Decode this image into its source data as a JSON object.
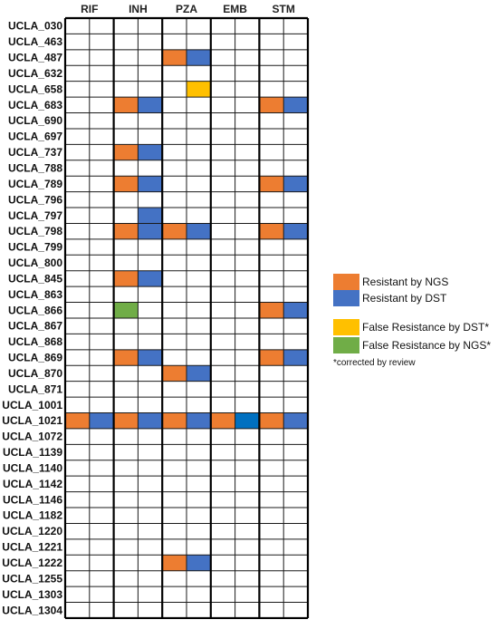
{
  "chart_data": {
    "type": "heatmap",
    "columns": [
      "RIF",
      "INH",
      "PZA",
      "EMB",
      "STM"
    ],
    "subcolumns": [
      "NGS",
      "DST"
    ],
    "rows": [
      "UCLA_030",
      "UCLA_463",
      "UCLA_487",
      "UCLA_632",
      "UCLA_658",
      "UCLA_683",
      "UCLA_690",
      "UCLA_697",
      "UCLA_737",
      "UCLA_788",
      "UCLA_789",
      "UCLA_796",
      "UCLA_797",
      "UCLA_798",
      "UCLA_799",
      "UCLA_800",
      "UCLA_845",
      "UCLA_863",
      "UCLA_866",
      "UCLA_867",
      "UCLA_868",
      "UCLA_869",
      "UCLA_870",
      "UCLA_871",
      "UCLA_1001",
      "UCLA_1021",
      "UCLA_1072",
      "UCLA_1139",
      "UCLA_1140",
      "UCLA_1142",
      "UCLA_1146",
      "UCLA_1182",
      "UCLA_1220",
      "UCLA_1221",
      "UCLA_1222",
      "UCLA_1255",
      "UCLA_1303",
      "UCLA_1304"
    ],
    "cells": [
      {
        "row": "UCLA_487",
        "drug": "PZA",
        "sub": "NGS",
        "status": "resistant_ngs"
      },
      {
        "row": "UCLA_487",
        "drug": "PZA",
        "sub": "DST",
        "status": "resistant_dst"
      },
      {
        "row": "UCLA_658",
        "drug": "PZA",
        "sub": "DST",
        "status": "false_dst"
      },
      {
        "row": "UCLA_683",
        "drug": "INH",
        "sub": "NGS",
        "status": "resistant_ngs"
      },
      {
        "row": "UCLA_683",
        "drug": "INH",
        "sub": "DST",
        "status": "resistant_dst"
      },
      {
        "row": "UCLA_683",
        "drug": "STM",
        "sub": "NGS",
        "status": "resistant_ngs"
      },
      {
        "row": "UCLA_683",
        "drug": "STM",
        "sub": "DST",
        "status": "resistant_dst"
      },
      {
        "row": "UCLA_737",
        "drug": "INH",
        "sub": "NGS",
        "status": "resistant_ngs"
      },
      {
        "row": "UCLA_737",
        "drug": "INH",
        "sub": "DST",
        "status": "resistant_dst"
      },
      {
        "row": "UCLA_789",
        "drug": "INH",
        "sub": "NGS",
        "status": "resistant_ngs"
      },
      {
        "row": "UCLA_789",
        "drug": "INH",
        "sub": "DST",
        "status": "resistant_dst"
      },
      {
        "row": "UCLA_789",
        "drug": "STM",
        "sub": "NGS",
        "status": "resistant_ngs"
      },
      {
        "row": "UCLA_789",
        "drug": "STM",
        "sub": "DST",
        "status": "resistant_dst"
      },
      {
        "row": "UCLA_797",
        "drug": "INH",
        "sub": "DST",
        "status": "resistant_dst"
      },
      {
        "row": "UCLA_798",
        "drug": "INH",
        "sub": "NGS",
        "status": "resistant_ngs"
      },
      {
        "row": "UCLA_798",
        "drug": "INH",
        "sub": "DST",
        "status": "resistant_dst"
      },
      {
        "row": "UCLA_798",
        "drug": "PZA",
        "sub": "NGS",
        "status": "resistant_ngs"
      },
      {
        "row": "UCLA_798",
        "drug": "PZA",
        "sub": "DST",
        "status": "resistant_dst"
      },
      {
        "row": "UCLA_798",
        "drug": "STM",
        "sub": "NGS",
        "status": "resistant_ngs"
      },
      {
        "row": "UCLA_798",
        "drug": "STM",
        "sub": "DST",
        "status": "resistant_dst"
      },
      {
        "row": "UCLA_845",
        "drug": "INH",
        "sub": "NGS",
        "status": "resistant_ngs"
      },
      {
        "row": "UCLA_845",
        "drug": "INH",
        "sub": "DST",
        "status": "resistant_dst"
      },
      {
        "row": "UCLA_866",
        "drug": "INH",
        "sub": "NGS",
        "status": "false_ngs"
      },
      {
        "row": "UCLA_866",
        "drug": "STM",
        "sub": "NGS",
        "status": "resistant_ngs"
      },
      {
        "row": "UCLA_866",
        "drug": "STM",
        "sub": "DST",
        "status": "resistant_dst"
      },
      {
        "row": "UCLA_869",
        "drug": "INH",
        "sub": "NGS",
        "status": "resistant_ngs"
      },
      {
        "row": "UCLA_869",
        "drug": "INH",
        "sub": "DST",
        "status": "resistant_dst"
      },
      {
        "row": "UCLA_869",
        "drug": "STM",
        "sub": "NGS",
        "status": "resistant_ngs"
      },
      {
        "row": "UCLA_869",
        "drug": "STM",
        "sub": "DST",
        "status": "resistant_dst"
      },
      {
        "row": "UCLA_870",
        "drug": "PZA",
        "sub": "NGS",
        "status": "resistant_ngs"
      },
      {
        "row": "UCLA_870",
        "drug": "PZA",
        "sub": "DST",
        "status": "resistant_dst"
      },
      {
        "row": "UCLA_1021",
        "drug": "RIF",
        "sub": "NGS",
        "status": "resistant_ngs"
      },
      {
        "row": "UCLA_1021",
        "drug": "RIF",
        "sub": "DST",
        "status": "resistant_dst"
      },
      {
        "row": "UCLA_1021",
        "drug": "INH",
        "sub": "NGS",
        "status": "resistant_ngs"
      },
      {
        "row": "UCLA_1021",
        "drug": "INH",
        "sub": "DST",
        "status": "resistant_dst"
      },
      {
        "row": "UCLA_1021",
        "drug": "PZA",
        "sub": "NGS",
        "status": "resistant_ngs"
      },
      {
        "row": "UCLA_1021",
        "drug": "PZA",
        "sub": "DST",
        "status": "resistant_dst"
      },
      {
        "row": "UCLA_1021",
        "drug": "EMB",
        "sub": "NGS",
        "status": "resistant_ngs"
      },
      {
        "row": "UCLA_1021",
        "drug": "EMB",
        "sub": "DST",
        "status": "resistant_dst_dark"
      },
      {
        "row": "UCLA_1021",
        "drug": "STM",
        "sub": "NGS",
        "status": "resistant_ngs"
      },
      {
        "row": "UCLA_1021",
        "drug": "STM",
        "sub": "DST",
        "status": "resistant_dst"
      },
      {
        "row": "UCLA_1222",
        "drug": "PZA",
        "sub": "NGS",
        "status": "resistant_ngs"
      },
      {
        "row": "UCLA_1222",
        "drug": "PZA",
        "sub": "DST",
        "status": "resistant_dst"
      }
    ],
    "colors": {
      "resistant_ngs": "#ED7D31",
      "resistant_dst": "#4472C4",
      "resistant_dst_dark": "#0070C0",
      "false_dst": "#FFC000",
      "false_ngs": "#70AD47"
    },
    "legend": [
      {
        "status": "resistant_ngs",
        "label": "Resistant by NGS"
      },
      {
        "status": "resistant_dst",
        "label": "Resistant by DST"
      },
      {
        "status": "false_dst",
        "label": "False Resistance by DST*"
      },
      {
        "status": "false_ngs",
        "label": "False Resistance by NGS*"
      }
    ],
    "legend_note": "*corrected by review",
    "legend_position": "right"
  }
}
